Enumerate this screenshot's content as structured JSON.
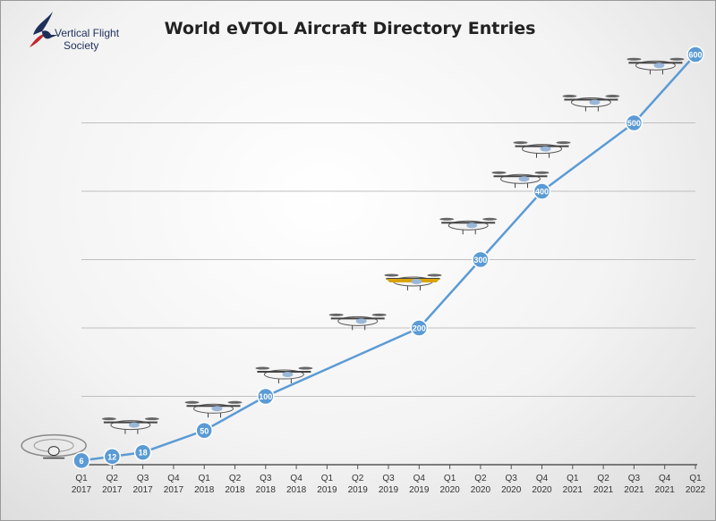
{
  "logo": {
    "line1": "Vertical Flight",
    "line2": "Society"
  },
  "chart_data": {
    "type": "line",
    "title": "World eVTOL Aircraft Directory Entries",
    "xlabel": "",
    "ylabel": "",
    "ylim": [
      0,
      600
    ],
    "grid": true,
    "legend": "none",
    "categories": [
      [
        "Q1",
        "2017"
      ],
      [
        "Q2",
        "2017"
      ],
      [
        "Q3",
        "2017"
      ],
      [
        "Q4",
        "2017"
      ],
      [
        "Q1",
        "2018"
      ],
      [
        "Q2",
        "2018"
      ],
      [
        "Q3",
        "2018"
      ],
      [
        "Q4",
        "2018"
      ],
      [
        "Q1",
        "2019"
      ],
      [
        "Q2",
        "2019"
      ],
      [
        "Q3",
        "2019"
      ],
      [
        "Q4",
        "2019"
      ],
      [
        "Q1",
        "2020"
      ],
      [
        "Q2",
        "2020"
      ],
      [
        "Q3",
        "2020"
      ],
      [
        "Q4",
        "2020"
      ],
      [
        "Q1",
        "2021"
      ],
      [
        "Q2",
        "2021"
      ],
      [
        "Q3",
        "2021"
      ],
      [
        "Q4",
        "2021"
      ],
      [
        "Q1",
        "2022"
      ]
    ],
    "points": [
      {
        "x": 0,
        "y": 6,
        "label": "6"
      },
      {
        "x": 1,
        "y": 12,
        "label": "12"
      },
      {
        "x": 2,
        "y": 18,
        "label": "18"
      },
      {
        "x": 4,
        "y": 50,
        "label": "50"
      },
      {
        "x": 6,
        "y": 100,
        "label": "100"
      },
      {
        "x": 11,
        "y": 200,
        "label": "200"
      },
      {
        "x": 13,
        "y": 300,
        "label": "300"
      },
      {
        "x": 15,
        "y": 400,
        "label": "400"
      },
      {
        "x": 18,
        "y": 500,
        "label": "500"
      },
      {
        "x": 20,
        "y": 600,
        "label": "600"
      }
    ],
    "colors": {
      "line": "#5b9bd5",
      "marker_stroke": "#ffffff",
      "label_text": "#ffffff",
      "grid": "#bfbfbf"
    },
    "aircraft_icons": [
      {
        "x": -0.9,
        "y": 28,
        "icon": "multicopter-drone-icon"
      },
      {
        "x": 1.6,
        "y": 58,
        "icon": "tilt-rotor-aircraft-icon"
      },
      {
        "x": 4.3,
        "y": 82,
        "icon": "passenger-drone-icon"
      },
      {
        "x": 6.6,
        "y": 132,
        "icon": "quadcopter-aircraft-icon"
      },
      {
        "x": 9.0,
        "y": 210,
        "icon": "lift-cruise-aircraft-icon"
      },
      {
        "x": 10.8,
        "y": 268,
        "icon": "tilt-wing-aircraft-icon"
      },
      {
        "x": 12.6,
        "y": 350,
        "icon": "multi-rotor-wing-icon"
      },
      {
        "x": 14.3,
        "y": 418,
        "icon": "ducted-fan-aircraft-icon"
      },
      {
        "x": 15.0,
        "y": 462,
        "icon": "tilt-prop-aircraft-icon"
      },
      {
        "x": 16.6,
        "y": 530,
        "icon": "vectored-thrust-aircraft-icon"
      },
      {
        "x": 18.7,
        "y": 584,
        "icon": "air-taxi-aircraft-icon"
      }
    ]
  }
}
